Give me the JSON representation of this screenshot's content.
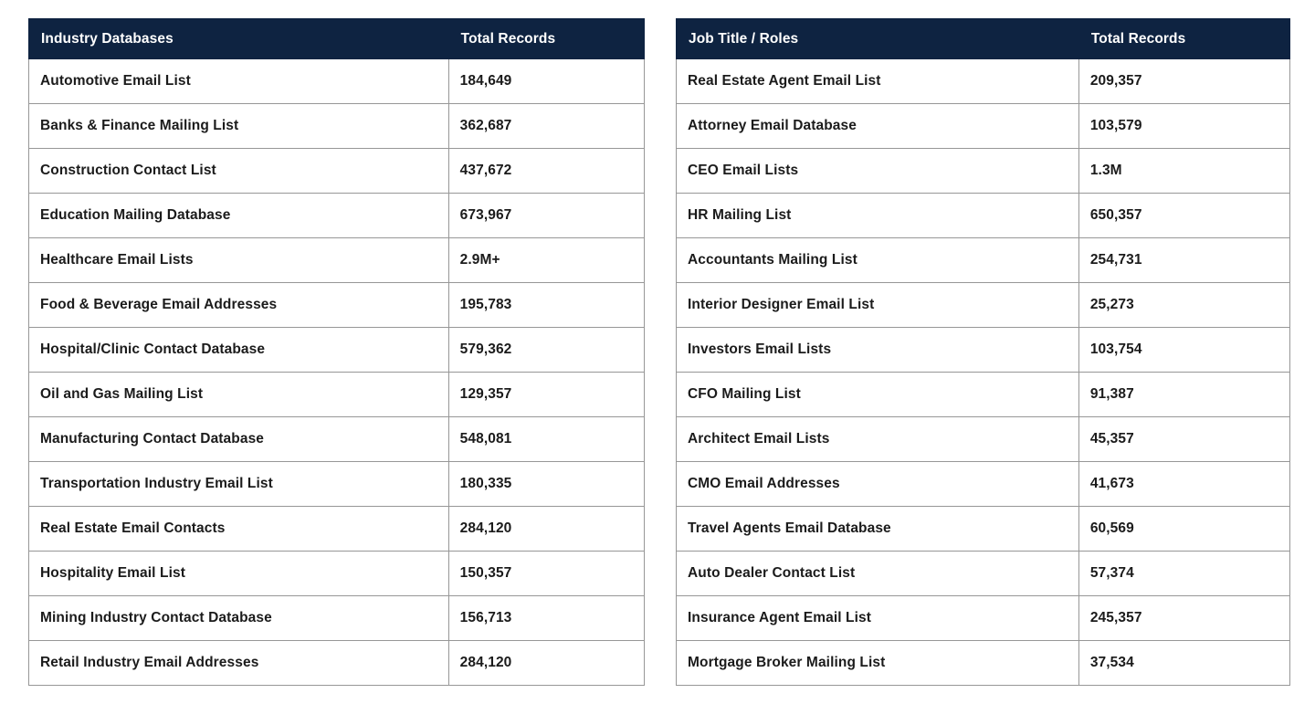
{
  "theme": {
    "header_bg": "#0e2341",
    "header_text": "#ffffff",
    "border_color": "#979797",
    "row_text": "#1b1b1b",
    "page_bg": "#ffffff"
  },
  "tables": [
    {
      "id": "industry-databases",
      "columns": [
        "Industry Databases",
        "Total Records"
      ],
      "rows": [
        [
          "Automotive Email List",
          "184,649"
        ],
        [
          "Banks & Finance Mailing List",
          "362,687"
        ],
        [
          "Construction Contact List",
          "437,672"
        ],
        [
          "Education Mailing Database",
          "673,967"
        ],
        [
          "Healthcare Email Lists",
          "2.9M+"
        ],
        [
          "Food & Beverage Email Addresses",
          "195,783"
        ],
        [
          "Hospital/Clinic Contact Database",
          "579,362"
        ],
        [
          "Oil and Gas Mailing List",
          "129,357"
        ],
        [
          "Manufacturing Contact Database",
          "548,081"
        ],
        [
          "Transportation Industry Email List",
          "180,335"
        ],
        [
          "Real Estate Email Contacts",
          "284,120"
        ],
        [
          "Hospitality Email List",
          "150,357"
        ],
        [
          "Mining Industry Contact Database",
          "156,713"
        ],
        [
          "Retail Industry Email Addresses",
          "284,120"
        ]
      ]
    },
    {
      "id": "job-title-roles",
      "columns": [
        "Job Title / Roles",
        "Total Records"
      ],
      "rows": [
        [
          "Real Estate Agent Email List",
          "209,357"
        ],
        [
          "Attorney Email Database",
          "103,579"
        ],
        [
          "CEO Email Lists",
          "1.3M"
        ],
        [
          "HR Mailing List",
          "650,357"
        ],
        [
          "Accountants Mailing List",
          "254,731"
        ],
        [
          "Interior Designer Email List",
          "25,273"
        ],
        [
          "Investors Email Lists",
          "103,754"
        ],
        [
          "CFO Mailing List",
          "91,387"
        ],
        [
          "Architect Email Lists",
          "45,357"
        ],
        [
          "CMO Email Addresses",
          "41,673"
        ],
        [
          "Travel Agents Email Database",
          "60,569"
        ],
        [
          "Auto Dealer Contact List",
          "57,374"
        ],
        [
          "Insurance Agent Email List",
          "245,357"
        ],
        [
          "Mortgage Broker Mailing List",
          "37,534"
        ]
      ]
    }
  ]
}
